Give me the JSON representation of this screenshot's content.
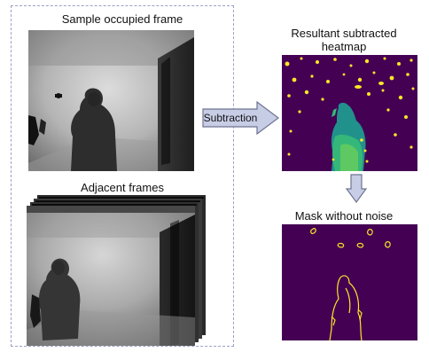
{
  "labels": {
    "sample_frame": "Sample occupied frame",
    "adjacent_frames": "Adjacent frames",
    "subtraction": "Subtraction",
    "heatmap_line1": "Resultant subtracted",
    "heatmap_line2": "heatmap",
    "mask": "Mask without noise"
  },
  "colors": {
    "viridis_bg": "#440154",
    "viridis_yellow": "#fde725",
    "viridis_green": "#35b779",
    "viridis_teal": "#21918c",
    "arrow_fill": "#c8cde6",
    "arrow_stroke": "#6e7391",
    "dashed_border": "#9aa0c8"
  }
}
